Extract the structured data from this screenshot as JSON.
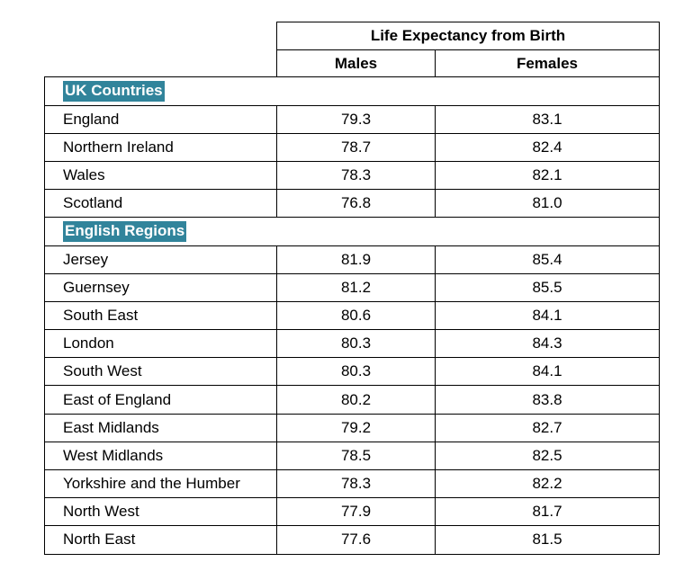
{
  "header": {
    "group_title": "Life Expectancy from Birth",
    "col_males": "Males",
    "col_females": "Females"
  },
  "sections": [
    {
      "label": "UK Countries",
      "rows": [
        {
          "name": "England",
          "males": "79.3",
          "females": "83.1"
        },
        {
          "name": "Northern Ireland",
          "males": "78.7",
          "females": "82.4"
        },
        {
          "name": "Wales",
          "males": "78.3",
          "females": "82.1"
        },
        {
          "name": "Scotland",
          "males": "76.8",
          "females": "81.0"
        }
      ]
    },
    {
      "label": "English Regions",
      "rows": [
        {
          "name": "Jersey",
          "males": "81.9",
          "females": "85.4"
        },
        {
          "name": "Guernsey",
          "males": "81.2",
          "females": "85.5"
        },
        {
          "name": "South East",
          "males": "80.6",
          "females": "84.1"
        },
        {
          "name": "London",
          "males": "80.3",
          "females": "84.3"
        },
        {
          "name": "South West",
          "males": "80.3",
          "females": "84.1"
        },
        {
          "name": "East of England",
          "males": "80.2",
          "females": "83.8"
        },
        {
          "name": "East Midlands",
          "males": "79.2",
          "females": "82.7"
        },
        {
          "name": "West Midlands",
          "males": "78.5",
          "females": "82.5"
        },
        {
          "name": "Yorkshire and the Humber",
          "males": "78.3",
          "females": "82.2"
        },
        {
          "name": "North West",
          "males": "77.9",
          "females": "81.7"
        },
        {
          "name": "North East",
          "males": "77.6",
          "females": "81.5"
        }
      ]
    }
  ]
}
